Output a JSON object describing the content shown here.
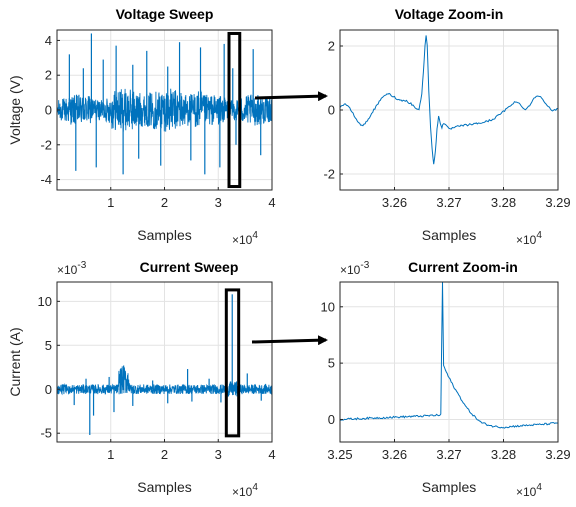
{
  "chart_data": [
    {
      "id": "voltage-sweep",
      "type": "line",
      "title": "Voltage Sweep",
      "xlabel": "Samples",
      "ylabel": "Voltage (V)",
      "x_exponent": "×10",
      "x_exponent_power": "4",
      "y_exponent": "",
      "y_exponent_power": "",
      "xlim": [
        0,
        40000
      ],
      "ylim": [
        -4.6,
        4.6
      ],
      "xticks": [
        10000,
        20000,
        30000,
        40000
      ],
      "xtick_labels": [
        "1",
        "2",
        "3",
        "4"
      ],
      "yticks": [
        -4,
        -2,
        0,
        2,
        4
      ],
      "ytick_labels": [
        "-4",
        "-2",
        "0",
        "2",
        "4"
      ],
      "grid": true,
      "line_color": "#0072bd",
      "highlight": {
        "x": [
          32000,
          34000
        ],
        "y": [
          -4.4,
          4.4
        ]
      },
      "spikes": [
        [
          2300,
          3.2
        ],
        [
          3500,
          -3.5
        ],
        [
          4900,
          2.4
        ],
        [
          6400,
          4.4
        ],
        [
          7300,
          -3.3
        ],
        [
          8600,
          2.9
        ],
        [
          11000,
          3.7
        ],
        [
          12300,
          -3.7
        ],
        [
          14100,
          2.6
        ],
        [
          15200,
          -2.8
        ],
        [
          16700,
          3.4
        ],
        [
          19300,
          -3.2
        ],
        [
          20600,
          2.5
        ],
        [
          22800,
          3.9
        ],
        [
          24900,
          -2.9
        ],
        [
          26700,
          3.6
        ],
        [
          27500,
          -3.7
        ],
        [
          30300,
          -3.3
        ],
        [
          31100,
          3.8
        ],
        [
          32700,
          2.4
        ],
        [
          33300,
          -2.0
        ],
        [
          36500,
          3.5
        ],
        [
          37900,
          -2.6
        ]
      ],
      "series": [
        {
          "color": "#0072bd"
        }
      ]
    },
    {
      "id": "voltage-zoom",
      "type": "line",
      "title": "Voltage Zoom-in",
      "xlabel": "Samples",
      "ylabel": "",
      "x_exponent": "×10",
      "x_exponent_power": "4",
      "y_exponent": "",
      "y_exponent_power": "",
      "xlim": [
        32500,
        32900
      ],
      "ylim": [
        -2.5,
        2.5
      ],
      "xticks": [
        32600,
        32700,
        32800,
        32900
      ],
      "xtick_labels": [
        "3.26",
        "3.27",
        "3.28",
        "3.29"
      ],
      "yticks": [
        -2,
        0,
        2
      ],
      "ytick_labels": [
        "-2",
        "0",
        "2"
      ],
      "grid": true,
      "line_color": "#0072bd",
      "points": [
        [
          32500,
          0.1
        ],
        [
          32510,
          0.2
        ],
        [
          32520,
          0.0
        ],
        [
          32530,
          -0.3
        ],
        [
          32540,
          -0.5
        ],
        [
          32550,
          -0.35
        ],
        [
          32560,
          -0.05
        ],
        [
          32570,
          0.2
        ],
        [
          32580,
          0.45
        ],
        [
          32590,
          0.5
        ],
        [
          32600,
          0.4
        ],
        [
          32610,
          0.3
        ],
        [
          32620,
          0.3
        ],
        [
          32630,
          0.2
        ],
        [
          32640,
          0.05
        ],
        [
          32645,
          0.0
        ],
        [
          32650,
          0.5
        ],
        [
          32653,
          1.2
        ],
        [
          32656,
          2.0
        ],
        [
          32658,
          2.35
        ],
        [
          32660,
          2.0
        ],
        [
          32663,
          0.6
        ],
        [
          32666,
          -0.5
        ],
        [
          32669,
          -1.2
        ],
        [
          32672,
          -1.7
        ],
        [
          32675,
          -1.3
        ],
        [
          32678,
          -0.6
        ],
        [
          32681,
          -0.2
        ],
        [
          32684,
          -0.4
        ],
        [
          32687,
          -0.55
        ],
        [
          32690,
          -0.4
        ],
        [
          32700,
          -0.6
        ],
        [
          32720,
          -0.5
        ],
        [
          32740,
          -0.45
        ],
        [
          32760,
          -0.4
        ],
        [
          32780,
          -0.3
        ],
        [
          32800,
          -0.05
        ],
        [
          32810,
          0.1
        ],
        [
          32820,
          0.25
        ],
        [
          32830,
          0.2
        ],
        [
          32840,
          0.0
        ],
        [
          32850,
          0.2
        ],
        [
          32860,
          0.45
        ],
        [
          32870,
          0.4
        ],
        [
          32880,
          0.15
        ],
        [
          32890,
          -0.05
        ],
        [
          32900,
          0.05
        ]
      ],
      "series": [
        {
          "color": "#0072bd"
        }
      ]
    },
    {
      "id": "current-sweep",
      "type": "line",
      "title": "Current Sweep",
      "xlabel": "Samples",
      "ylabel": "Current (A)",
      "x_exponent": "×10",
      "x_exponent_power": "4",
      "y_exponent": "×10",
      "y_exponent_power": "-3",
      "xlim": [
        0,
        40000
      ],
      "ylim": [
        -6,
        12.2
      ],
      "xticks": [
        10000,
        20000,
        30000,
        40000
      ],
      "xtick_labels": [
        "1",
        "2",
        "3",
        "4"
      ],
      "yticks": [
        -5,
        0,
        5,
        10
      ],
      "ytick_labels": [
        "-5",
        "0",
        "5",
        "10"
      ],
      "grid": true,
      "line_color": "#0072bd",
      "highlight": {
        "x": [
          31500,
          33800
        ],
        "y": [
          -5.3,
          11.3
        ]
      },
      "spikes": [
        [
          3200,
          -1.8
        ],
        [
          5400,
          1.2
        ],
        [
          6100,
          -5.2
        ],
        [
          6800,
          -3.0
        ],
        [
          9700,
          1.4
        ],
        [
          10600,
          -2.6
        ],
        [
          12400,
          2.7
        ],
        [
          14100,
          -1.9
        ],
        [
          17800,
          1.0
        ],
        [
          20600,
          -1.6
        ],
        [
          24300,
          2.3
        ],
        [
          25100,
          -1.4
        ],
        [
          28300,
          1.2
        ],
        [
          30500,
          -1.5
        ],
        [
          32600,
          10.8
        ],
        [
          35400,
          1.8
        ],
        [
          38000,
          -1.3
        ]
      ],
      "series": [
        {
          "color": "#0072bd"
        }
      ]
    },
    {
      "id": "current-zoom",
      "type": "line",
      "title": "Current Zoom-in",
      "xlabel": "Samples",
      "ylabel": "",
      "x_exponent": "×10",
      "x_exponent_power": "4",
      "y_exponent": "×10",
      "y_exponent_power": "-3",
      "xlim": [
        32500,
        32900
      ],
      "ylim": [
        -2,
        12.2
      ],
      "xticks": [
        32500,
        32600,
        32700,
        32800,
        32900
      ],
      "xtick_labels": [
        "3.25",
        "3.26",
        "3.27",
        "3.28",
        "3.29"
      ],
      "yticks": [
        0,
        5,
        10
      ],
      "ytick_labels": [
        "0",
        "5",
        "10"
      ],
      "grid": true,
      "line_color": "#0072bd",
      "points": [
        [
          32500,
          0.0
        ],
        [
          32550,
          0.1
        ],
        [
          32600,
          0.2
        ],
        [
          32650,
          0.3
        ],
        [
          32685,
          0.4
        ],
        [
          32688,
          12.2
        ],
        [
          32690,
          4.8
        ],
        [
          32695,
          4.2
        ],
        [
          32700,
          3.7
        ],
        [
          32710,
          2.8
        ],
        [
          32720,
          2.0
        ],
        [
          32730,
          1.2
        ],
        [
          32740,
          0.6
        ],
        [
          32750,
          0.1
        ],
        [
          32760,
          -0.3
        ],
        [
          32780,
          -0.6
        ],
        [
          32800,
          -0.7
        ],
        [
          32820,
          -0.6
        ],
        [
          32850,
          -0.5
        ],
        [
          32880,
          -0.4
        ],
        [
          32900,
          -0.3
        ]
      ],
      "series": [
        {
          "color": "#0072bd"
        }
      ]
    }
  ]
}
